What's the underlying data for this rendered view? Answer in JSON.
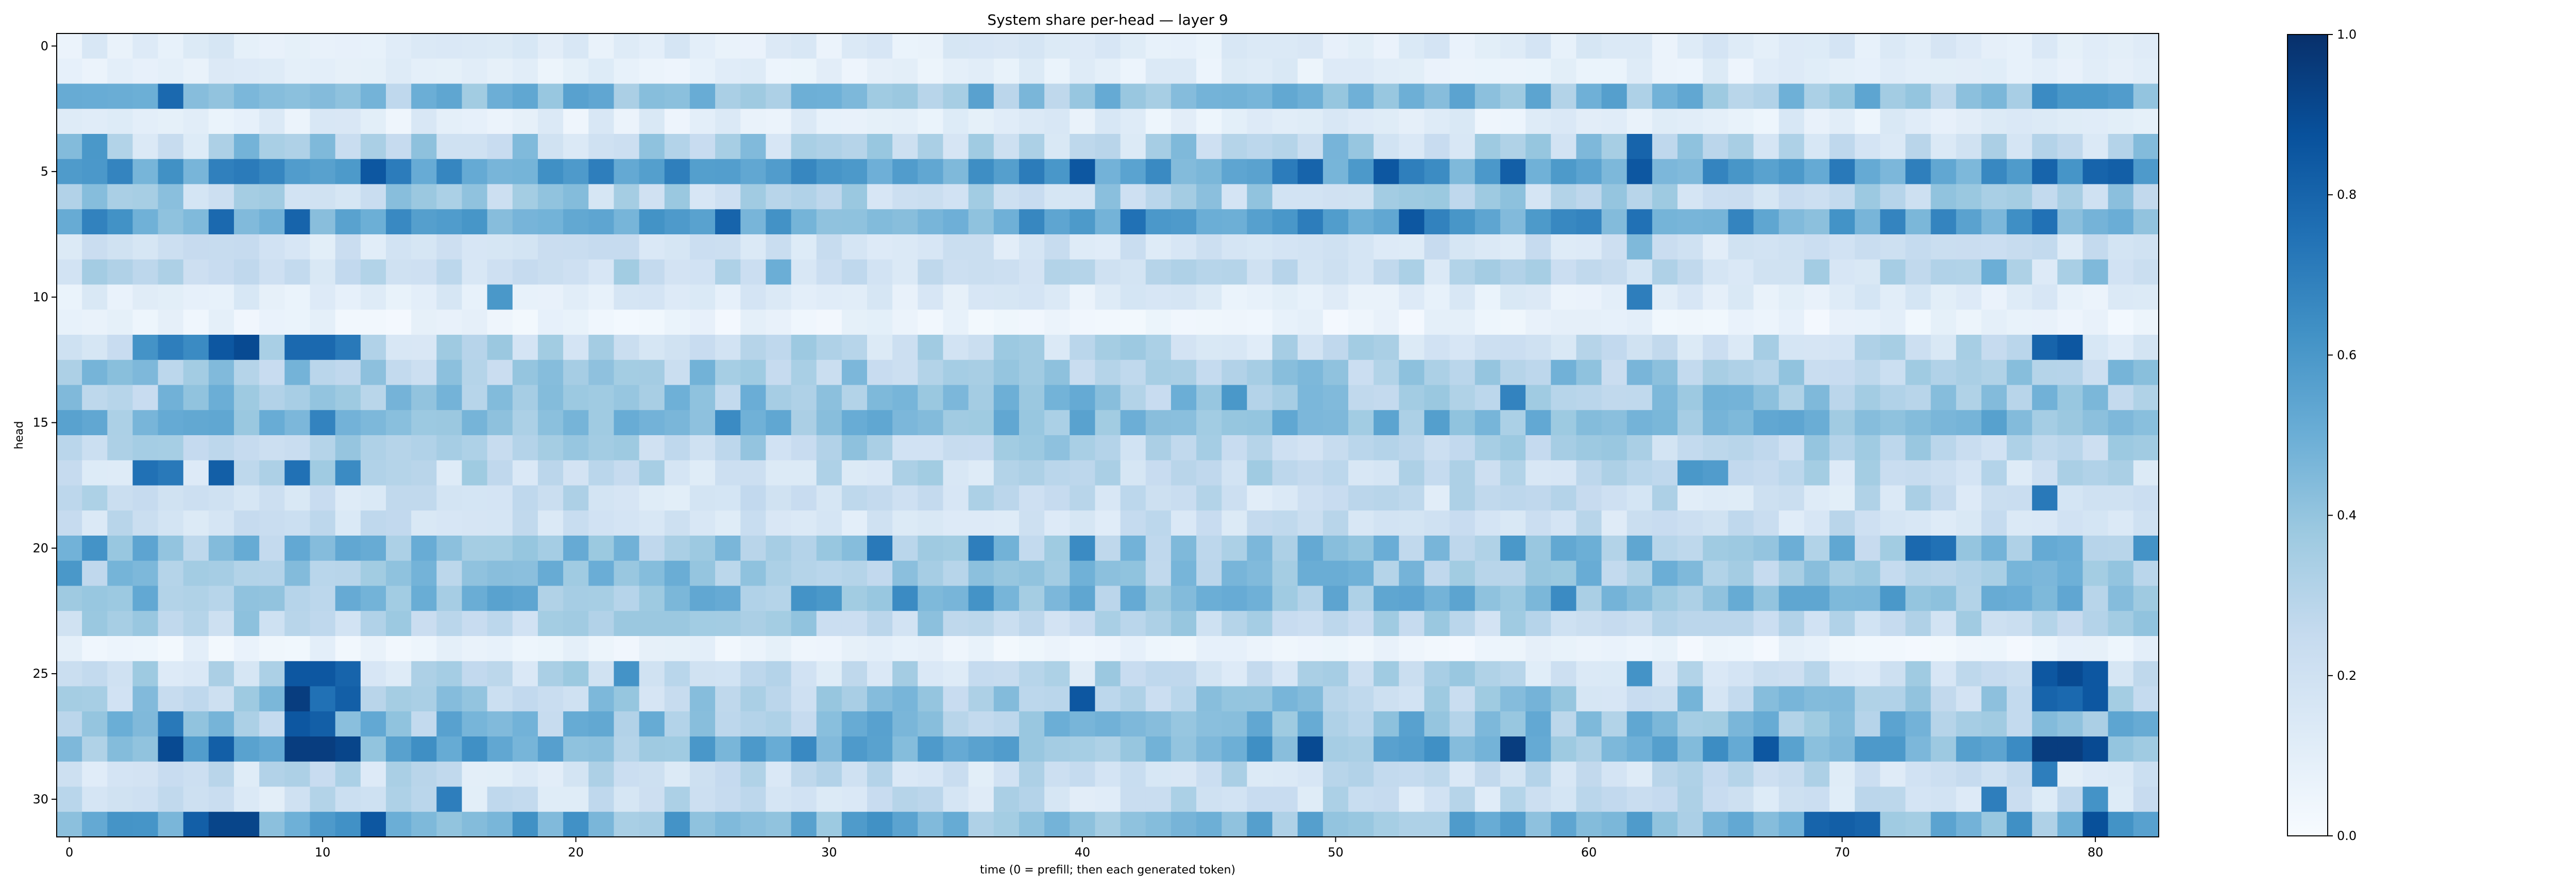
{
  "chart_data": {
    "type": "heatmap",
    "title": "System share per-head — layer 9",
    "xlabel": "time (0 = prefill; then each generated token)",
    "ylabel": "head",
    "x_ticks": [
      0,
      10,
      20,
      30,
      40,
      50,
      60,
      70,
      80
    ],
    "y_ticks": [
      0,
      5,
      10,
      15,
      20,
      25,
      30
    ],
    "n_cols": 83,
    "n_rows": 32,
    "colormap": "Blues",
    "vmin": 0.0,
    "vmax": 1.0,
    "colorbar_ticks": [
      "0.0",
      "0.2",
      "0.4",
      "0.6",
      "0.8",
      "1.0"
    ],
    "colors": {
      "low": "#f7fbff",
      "high": "#08306b",
      "axis": "#000000"
    },
    "rows": [
      {
        "head": 0,
        "base": 0.12,
        "noise": 0.06,
        "peaks": []
      },
      {
        "head": 1,
        "base": 0.1,
        "noise": 0.05,
        "peaks": []
      },
      {
        "head": 2,
        "base": 0.42,
        "noise": 0.15,
        "peaks": [
          [
            4,
            0.78
          ],
          [
            78,
            0.65
          ],
          [
            79,
            0.6
          ],
          [
            80,
            0.6
          ],
          [
            81,
            0.58
          ]
        ]
      },
      {
        "head": 3,
        "base": 0.1,
        "noise": 0.06,
        "peaks": []
      },
      {
        "head": 4,
        "base": 0.3,
        "noise": 0.18,
        "peaks": [
          [
            1,
            0.6
          ],
          [
            62,
            0.8
          ]
        ]
      },
      {
        "head": 5,
        "base": 0.58,
        "noise": 0.14,
        "peaks": [
          [
            12,
            0.85
          ],
          [
            40,
            0.85
          ],
          [
            49,
            0.8
          ],
          [
            52,
            0.85
          ],
          [
            57,
            0.82
          ],
          [
            62,
            0.85
          ],
          [
            78,
            0.8
          ],
          [
            80,
            0.8
          ],
          [
            81,
            0.82
          ]
        ]
      },
      {
        "head": 6,
        "base": 0.3,
        "noise": 0.14,
        "peaks": []
      },
      {
        "head": 7,
        "base": 0.55,
        "noise": 0.16,
        "peaks": [
          [
            6,
            0.78
          ],
          [
            9,
            0.8
          ],
          [
            26,
            0.8
          ],
          [
            42,
            0.75
          ],
          [
            53,
            0.85
          ],
          [
            62,
            0.75
          ],
          [
            78,
            0.75
          ]
        ]
      },
      {
        "head": 8,
        "base": 0.18,
        "noise": 0.08,
        "peaks": [
          [
            62,
            0.45
          ]
        ]
      },
      {
        "head": 9,
        "base": 0.25,
        "noise": 0.12,
        "peaks": [
          [
            28,
            0.5
          ],
          [
            76,
            0.5
          ],
          [
            80,
            0.45
          ]
        ]
      },
      {
        "head": 10,
        "base": 0.12,
        "noise": 0.06,
        "peaks": [
          [
            17,
            0.6
          ],
          [
            62,
            0.7
          ]
        ]
      },
      {
        "head": 11,
        "base": 0.06,
        "noise": 0.04,
        "peaks": []
      },
      {
        "head": 12,
        "base": 0.25,
        "noise": 0.14,
        "peaks": [
          [
            3,
            0.62
          ],
          [
            4,
            0.7
          ],
          [
            5,
            0.65
          ],
          [
            6,
            0.85
          ],
          [
            7,
            0.9
          ],
          [
            9,
            0.78
          ],
          [
            10,
            0.78
          ],
          [
            11,
            0.72
          ],
          [
            78,
            0.8
          ],
          [
            79,
            0.85
          ]
        ]
      },
      {
        "head": 13,
        "base": 0.35,
        "noise": 0.14,
        "peaks": []
      },
      {
        "head": 14,
        "base": 0.38,
        "noise": 0.14,
        "peaks": [
          [
            46,
            0.6
          ],
          [
            57,
            0.68
          ]
        ]
      },
      {
        "head": 15,
        "base": 0.45,
        "noise": 0.12,
        "peaks": [
          [
            10,
            0.68
          ],
          [
            26,
            0.65
          ]
        ]
      },
      {
        "head": 16,
        "base": 0.3,
        "noise": 0.12,
        "peaks": []
      },
      {
        "head": 17,
        "base": 0.25,
        "noise": 0.14,
        "peaks": [
          [
            3,
            0.75
          ],
          [
            4,
            0.72
          ],
          [
            6,
            0.82
          ],
          [
            9,
            0.75
          ],
          [
            11,
            0.65
          ],
          [
            64,
            0.6
          ],
          [
            65,
            0.58
          ]
        ]
      },
      {
        "head": 18,
        "base": 0.22,
        "noise": 0.12,
        "peaks": [
          [
            78,
            0.72
          ]
        ]
      },
      {
        "head": 19,
        "base": 0.2,
        "noise": 0.1,
        "peaks": []
      },
      {
        "head": 20,
        "base": 0.4,
        "noise": 0.16,
        "peaks": [
          [
            1,
            0.62
          ],
          [
            32,
            0.72
          ],
          [
            36,
            0.7
          ],
          [
            40,
            0.65
          ],
          [
            57,
            0.6
          ],
          [
            73,
            0.78
          ],
          [
            74,
            0.75
          ],
          [
            82,
            0.62
          ]
        ]
      },
      {
        "head": 21,
        "base": 0.38,
        "noise": 0.14,
        "peaks": [
          [
            0,
            0.6
          ]
        ]
      },
      {
        "head": 22,
        "base": 0.42,
        "noise": 0.14,
        "peaks": [
          [
            29,
            0.62
          ],
          [
            30,
            0.6
          ],
          [
            33,
            0.65
          ],
          [
            36,
            0.62
          ],
          [
            59,
            0.65
          ],
          [
            72,
            0.6
          ]
        ]
      },
      {
        "head": 23,
        "base": 0.3,
        "noise": 0.12,
        "peaks": []
      },
      {
        "head": 24,
        "base": 0.06,
        "noise": 0.04,
        "peaks": []
      },
      {
        "head": 25,
        "base": 0.25,
        "noise": 0.14,
        "peaks": [
          [
            9,
            0.85
          ],
          [
            10,
            0.85
          ],
          [
            11,
            0.8
          ],
          [
            22,
            0.62
          ],
          [
            62,
            0.62
          ],
          [
            78,
            0.85
          ],
          [
            79,
            0.9
          ],
          [
            80,
            0.85
          ]
        ]
      },
      {
        "head": 26,
        "base": 0.32,
        "noise": 0.16,
        "peaks": [
          [
            9,
            0.95
          ],
          [
            10,
            0.75
          ],
          [
            11,
            0.82
          ],
          [
            40,
            0.85
          ],
          [
            78,
            0.8
          ],
          [
            79,
            0.78
          ],
          [
            80,
            0.85
          ]
        ]
      },
      {
        "head": 27,
        "base": 0.4,
        "noise": 0.16,
        "peaks": [
          [
            4,
            0.72
          ],
          [
            9,
            0.85
          ],
          [
            10,
            0.82
          ]
        ]
      },
      {
        "head": 28,
        "base": 0.48,
        "noise": 0.18,
        "peaks": [
          [
            4,
            0.9
          ],
          [
            6,
            0.82
          ],
          [
            9,
            0.95
          ],
          [
            10,
            0.95
          ],
          [
            11,
            0.92
          ],
          [
            49,
            0.9
          ],
          [
            57,
            0.95
          ],
          [
            67,
            0.85
          ],
          [
            78,
            0.95
          ],
          [
            79,
            0.95
          ],
          [
            80,
            0.9
          ]
        ]
      },
      {
        "head": 29,
        "base": 0.22,
        "noise": 0.12,
        "peaks": [
          [
            78,
            0.7
          ]
        ]
      },
      {
        "head": 30,
        "base": 0.22,
        "noise": 0.12,
        "peaks": [
          [
            15,
            0.7
          ],
          [
            76,
            0.7
          ],
          [
            80,
            0.62
          ]
        ]
      },
      {
        "head": 31,
        "base": 0.48,
        "noise": 0.16,
        "peaks": [
          [
            5,
            0.82
          ],
          [
            6,
            0.92
          ],
          [
            7,
            0.92
          ],
          [
            12,
            0.85
          ],
          [
            69,
            0.8
          ],
          [
            70,
            0.82
          ],
          [
            71,
            0.8
          ],
          [
            80,
            0.88
          ]
        ]
      }
    ]
  }
}
